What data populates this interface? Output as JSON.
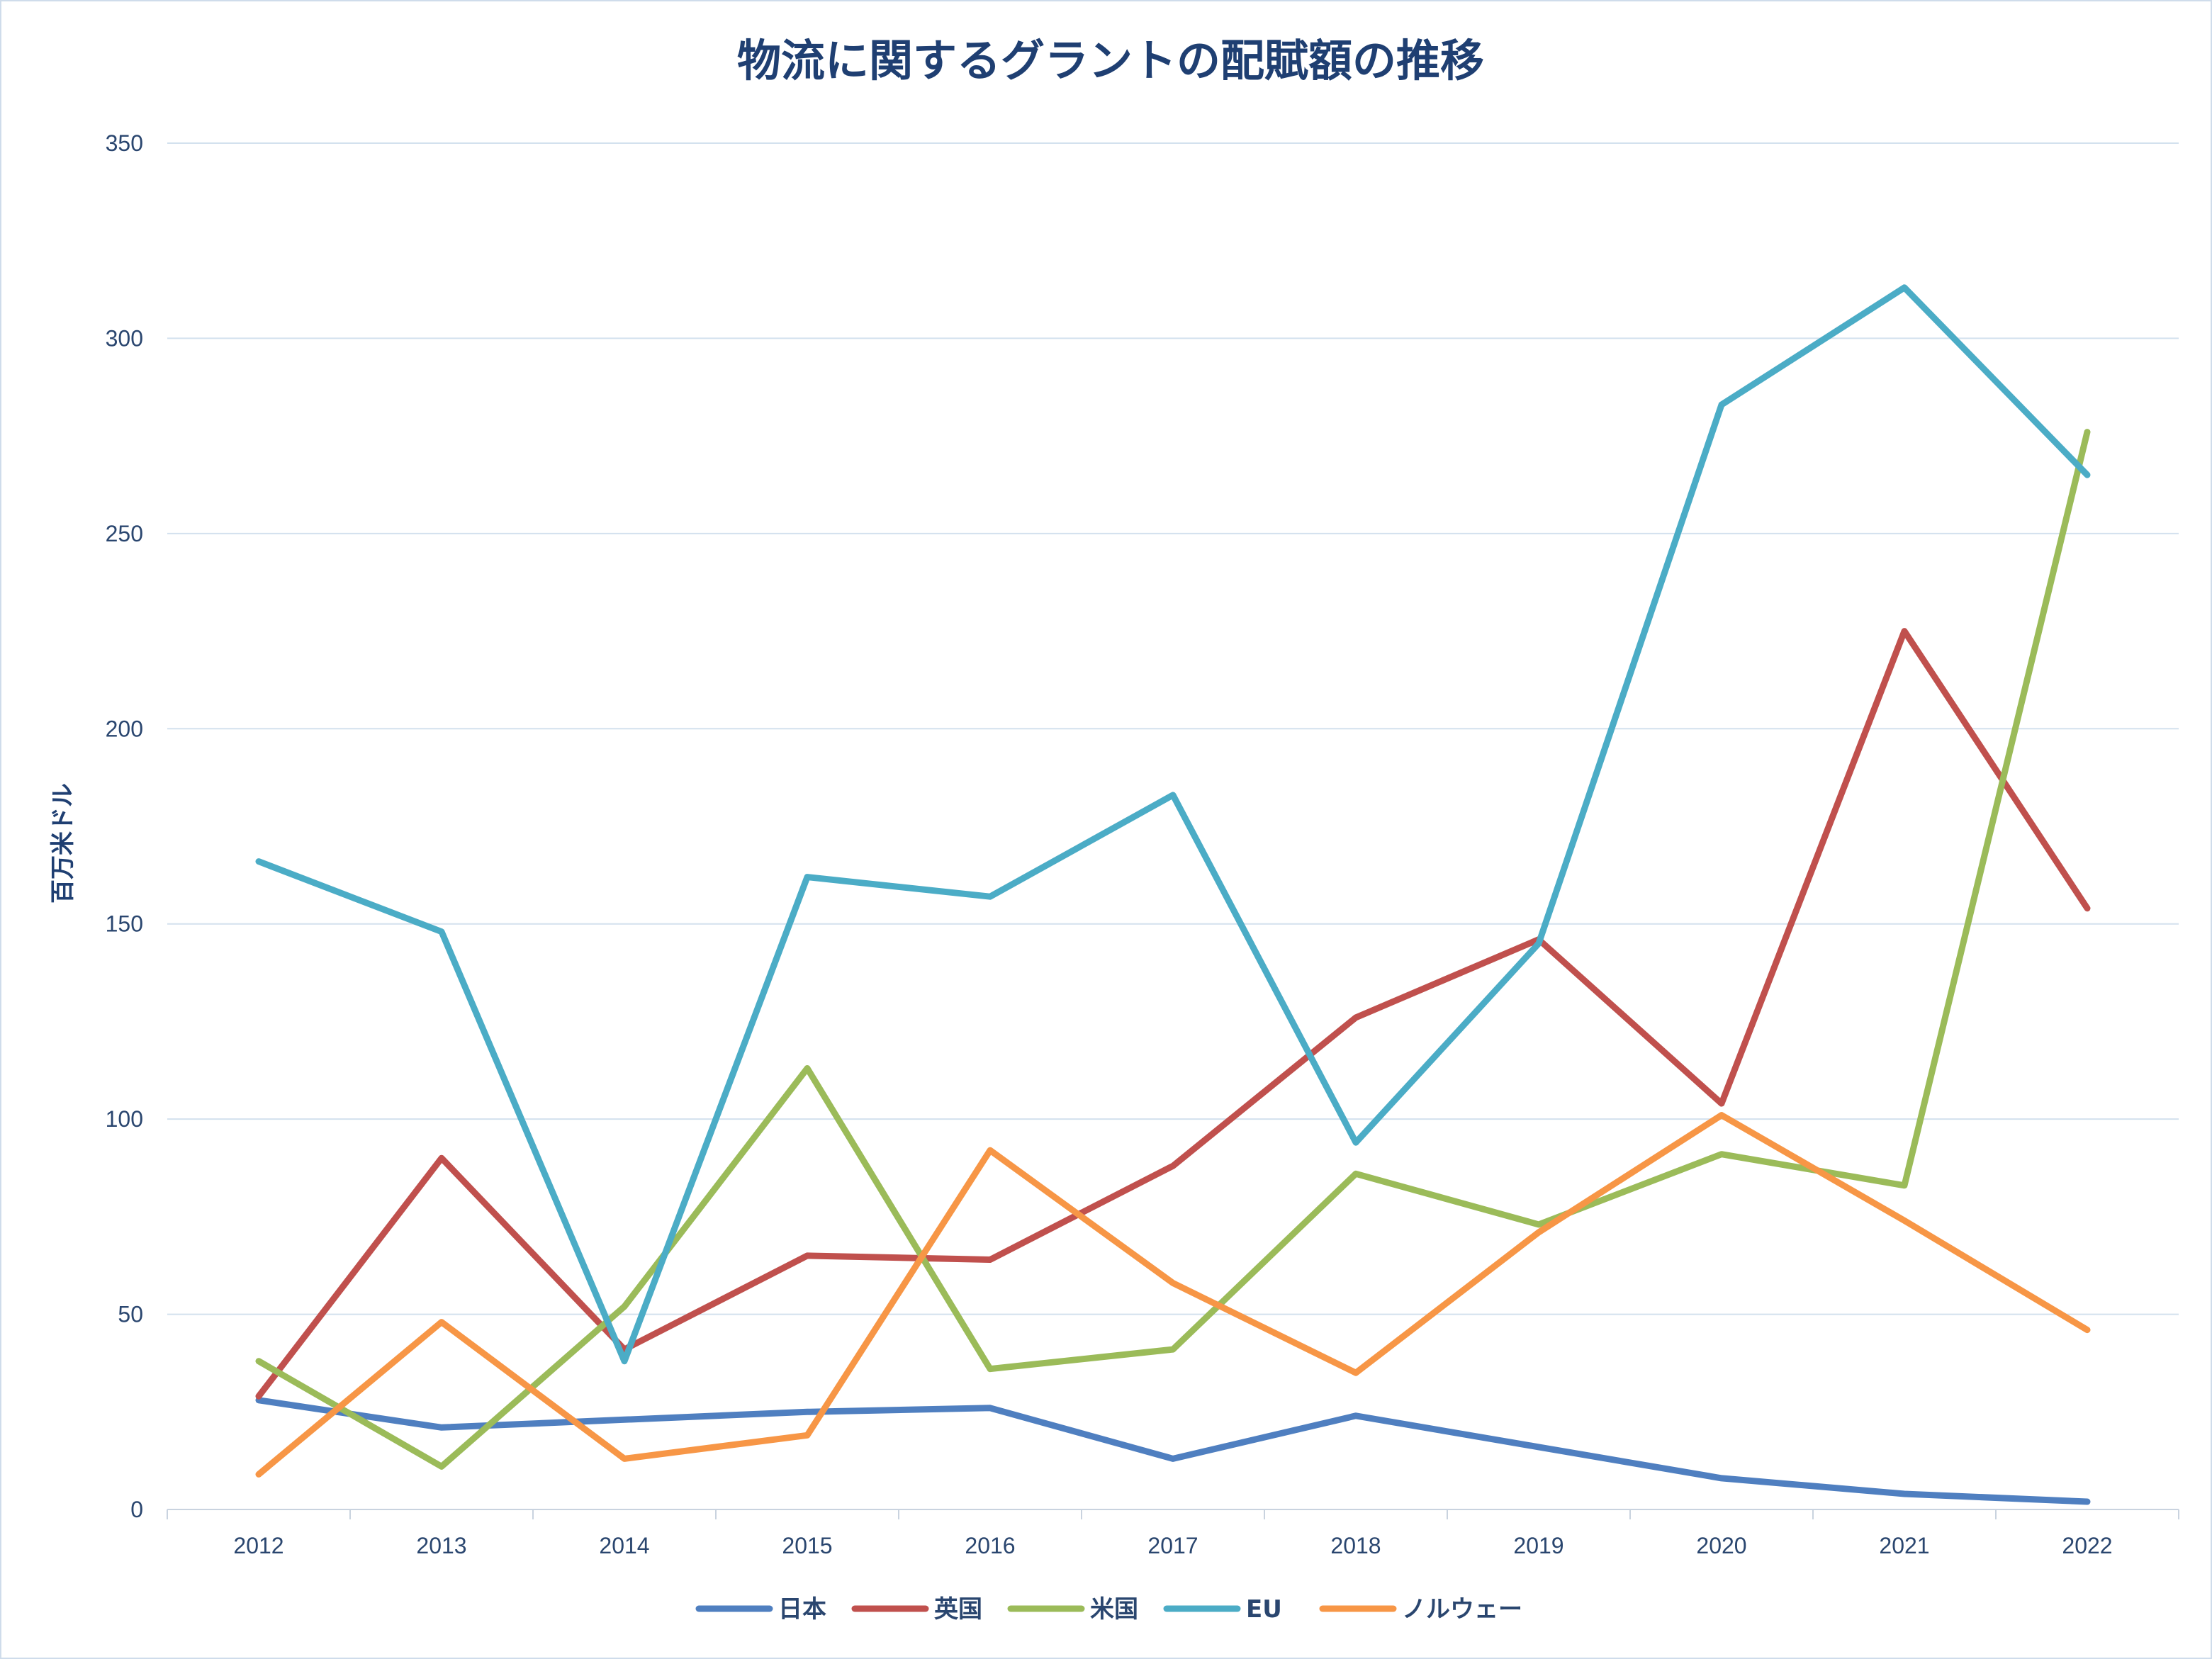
{
  "chart_data": {
    "type": "line",
    "title": "物流に関するグラントの配賦額の推移",
    "xlabel": "",
    "ylabel": "百万米ドル",
    "ylim": [
      0,
      350
    ],
    "yticks": [
      0,
      50,
      100,
      150,
      200,
      250,
      300,
      350
    ],
    "grid": true,
    "legend_position": "bottom",
    "categories": [
      "2012",
      "2013",
      "2014",
      "2015",
      "2016",
      "2017",
      "2018",
      "2019",
      "2020",
      "2021",
      "2022"
    ],
    "series": [
      {
        "name": "日本",
        "color": "#4f7fc0",
        "values": [
          28,
          21,
          23,
          25,
          26,
          13,
          24,
          16,
          8,
          4,
          2
        ]
      },
      {
        "name": "英国",
        "color": "#c0504d",
        "values": [
          29,
          90,
          41,
          65,
          64,
          88,
          126,
          146,
          104,
          225,
          154
        ]
      },
      {
        "name": "米国",
        "color": "#9bbb59",
        "values": [
          38,
          11,
          52,
          113,
          36,
          41,
          86,
          73,
          91,
          83,
          276
        ]
      },
      {
        "name": "EU",
        "color": "#4bacc6",
        "values": [
          166,
          148,
          38,
          162,
          157,
          183,
          94,
          145,
          283,
          313,
          265
        ]
      },
      {
        "name": "ノルウェー",
        "color": "#f79646",
        "values": [
          9,
          48,
          13,
          19,
          92,
          58,
          35,
          71,
          101,
          74,
          46
        ]
      }
    ]
  }
}
